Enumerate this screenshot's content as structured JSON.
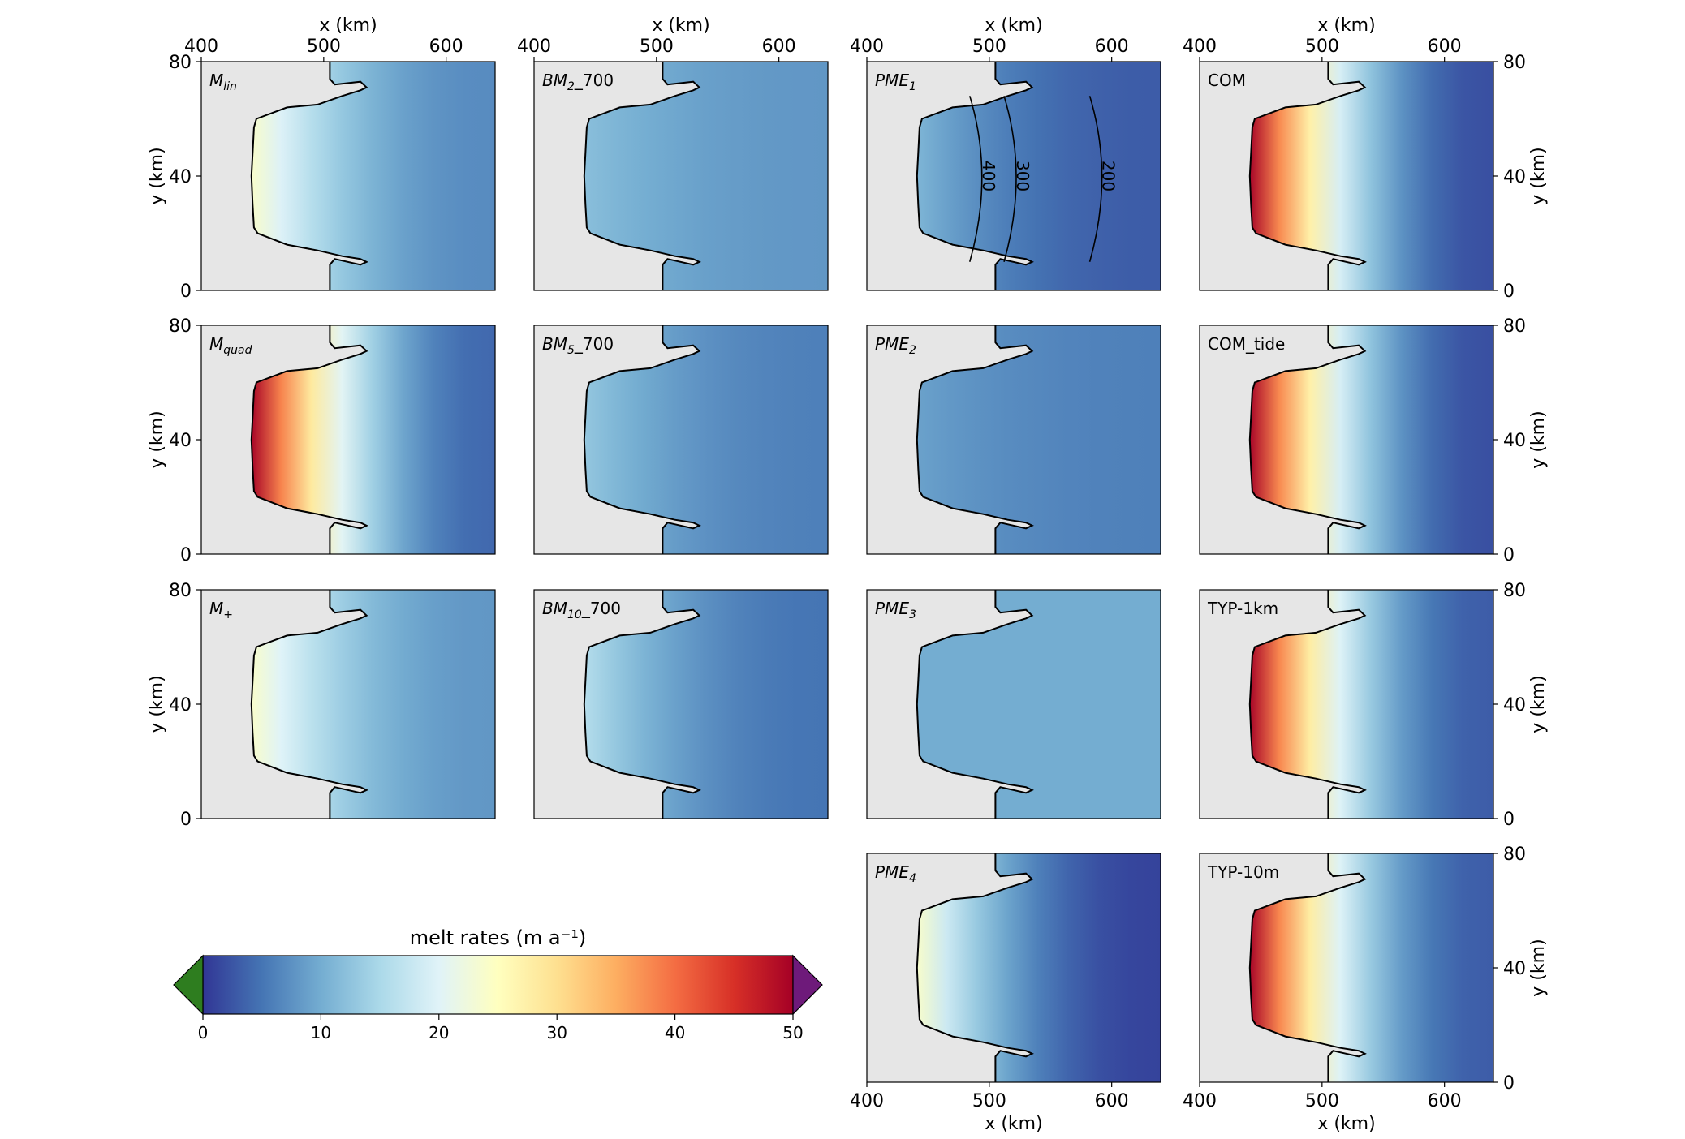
{
  "figure": {
    "x_axis_label": "x (km)",
    "y_axis_label": "y (km)",
    "x_ticks": [
      "400",
      "500",
      "600"
    ],
    "y_ticks": [
      "0",
      "40",
      "80"
    ]
  },
  "colorbar": {
    "label": "melt rates (m a⁻¹)",
    "ticks": [
      "0",
      "10",
      "20",
      "30",
      "40",
      "50"
    ],
    "min": 0,
    "max": 50,
    "extend": "both",
    "under_color": "#2e7d1f",
    "over_color": "#6e1a7a",
    "colormap": [
      "#313695",
      "#4575b4",
      "#74add1",
      "#abd9e9",
      "#e0f3f8",
      "#ffffbf",
      "#fee090",
      "#fdae61",
      "#f46d43",
      "#d73027",
      "#a50026"
    ]
  },
  "chart_data": {
    "type": "heatmap",
    "title": "",
    "xlabel": "x (km)",
    "ylabel": "y (km)",
    "xlim": [
      400,
      640
    ],
    "ylim": [
      0,
      80
    ],
    "grounding_line_front_x_km": 505,
    "ice_shelf_region_x_km": [
      445,
      535
    ],
    "panels": [
      {
        "id": "lin",
        "label_main": "M",
        "label_sub": "lin",
        "peak_melt": 24,
        "far_melt": 7
      },
      {
        "id": "bm2",
        "label_main": "BM",
        "label_sub": "2",
        "label_tail": "_700",
        "peak_melt": 12,
        "far_melt": 8
      },
      {
        "id": "pme1",
        "label_main": "PME",
        "label_sub": "1",
        "peak_melt": 11,
        "far_melt": 3,
        "contours": [
          "400",
          "300",
          "200"
        ]
      },
      {
        "id": "com",
        "label_main": "COM",
        "peak_melt": 50,
        "far_melt": 2
      },
      {
        "id": "quad",
        "label_main": "M",
        "label_sub": "quad",
        "peak_melt": 50,
        "far_melt": 4
      },
      {
        "id": "bm5",
        "label_main": "BM",
        "label_sub": "5",
        "label_tail": "_700",
        "peak_melt": 13,
        "far_melt": 6
      },
      {
        "id": "pme2",
        "label_main": "PME",
        "label_sub": "2",
        "peak_melt": 9,
        "far_melt": 6
      },
      {
        "id": "comtide",
        "label_main": "COM_tide",
        "peak_melt": 50,
        "far_melt": 2
      },
      {
        "id": "plus",
        "label_main": "M",
        "label_sub": "+",
        "peak_melt": 24,
        "far_melt": 8
      },
      {
        "id": "bm10",
        "label_main": "BM",
        "label_sub": "10",
        "label_tail": "_700",
        "peak_melt": 16,
        "far_melt": 5
      },
      {
        "id": "pme3",
        "label_main": "PME",
        "label_sub": "3",
        "peak_melt": 10,
        "far_melt": 10
      },
      {
        "id": "typ1km",
        "label_main": "TYP-1km",
        "peak_melt": 50,
        "far_melt": 3
      },
      {
        "id": "pme4",
        "label_main": "PME",
        "label_sub": "4",
        "peak_melt": 24,
        "far_melt": 1
      },
      {
        "id": "typ10m",
        "label_main": "TYP-10m",
        "peak_melt": 50,
        "far_melt": 3
      }
    ]
  }
}
